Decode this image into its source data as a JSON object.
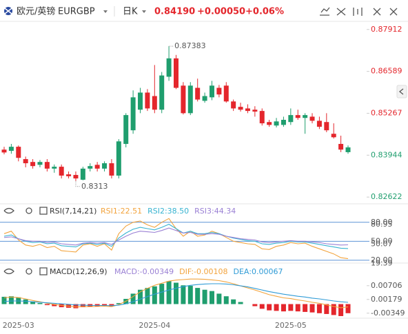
{
  "header": {
    "pair": "欧元/英镑",
    "symbol": "EURGBP",
    "period": "日K",
    "price": "0.84190",
    "change": "+0.00050",
    "change_pct": "+0.06%",
    "price_color": "#e4262c"
  },
  "chart_data": [
    {
      "type": "candlestick",
      "categories": [
        null,
        null,
        "2025-03",
        null,
        null,
        null,
        null,
        null,
        null,
        null,
        null,
        null,
        null,
        null,
        null,
        null,
        null,
        null,
        null,
        null,
        null,
        "2025-04",
        null,
        null,
        null,
        null,
        null,
        null,
        null,
        null,
        null,
        null,
        null,
        null,
        null,
        null,
        null,
        null,
        null,
        null,
        "2025-05",
        null,
        null,
        null,
        null,
        null,
        null,
        null,
        null
      ],
      "open": [
        0.8412,
        0.8408,
        0.8421,
        0.8382,
        0.8373,
        0.8364,
        0.8373,
        0.8352,
        0.8358,
        0.8334,
        0.8332,
        0.8317,
        0.8352,
        0.8364,
        0.8352,
        0.8369,
        0.833,
        0.843,
        0.8473,
        0.8538,
        0.8592,
        0.8581,
        0.8538,
        0.8642,
        0.87,
        0.8614,
        0.8527,
        0.8607,
        0.8566,
        0.8577,
        0.8607,
        0.8614,
        0.8564,
        0.8547,
        0.8542,
        0.8538,
        0.8534,
        0.8499,
        0.8488,
        0.849,
        0.8499,
        0.8521,
        0.8512,
        0.8516,
        0.8503,
        0.8499,
        0.8462,
        0.843,
        0.8404
      ],
      "high": [
        0.8421,
        0.843,
        0.8425,
        0.839,
        0.8382,
        0.8379,
        0.8382,
        0.8365,
        0.8365,
        0.8343,
        0.8343,
        0.8358,
        0.8369,
        0.8373,
        0.8375,
        0.8382,
        0.8445,
        0.8527,
        0.8599,
        0.8607,
        0.8603,
        0.8679,
        0.8657,
        0.87383,
        0.8711,
        0.8625,
        0.8625,
        0.8636,
        0.8592,
        0.8629,
        0.8616,
        0.8625,
        0.857,
        0.856,
        0.8555,
        0.8549,
        0.8542,
        0.8506,
        0.8512,
        0.8516,
        0.8542,
        0.8538,
        0.8527,
        0.8527,
        0.8516,
        0.8527,
        0.8495,
        0.8456,
        0.8425
      ],
      "low": [
        0.8397,
        0.8399,
        0.8375,
        0.8356,
        0.8352,
        0.8356,
        0.8343,
        0.8339,
        0.8321,
        0.8321,
        0.8313,
        0.83151,
        0.8343,
        0.8343,
        0.8343,
        0.8321,
        0.8321,
        0.8419,
        0.8462,
        0.8527,
        0.8534,
        0.8527,
        0.8527,
        0.8629,
        0.8603,
        0.8523,
        0.8521,
        0.8564,
        0.856,
        0.8568,
        0.8577,
        0.856,
        0.8534,
        0.8532,
        0.8527,
        0.8516,
        0.8488,
        0.8484,
        0.8482,
        0.8484,
        0.849,
        0.8506,
        0.8462,
        0.8495,
        0.8477,
        0.8467,
        0.8447,
        0.8404,
        0.8399
      ],
      "close": [
        0.8403,
        0.8421,
        0.8386,
        0.8369,
        0.836,
        0.8373,
        0.8352,
        0.8358,
        0.833,
        0.8328,
        0.8321,
        0.8352,
        0.836,
        0.8352,
        0.8369,
        0.833,
        0.8438,
        0.8521,
        0.8577,
        0.8592,
        0.8542,
        0.8538,
        0.8646,
        0.87,
        0.8607,
        0.8527,
        0.8614,
        0.857,
        0.8581,
        0.8614,
        0.8586,
        0.8564,
        0.8542,
        0.8538,
        0.8534,
        0.8532,
        0.8495,
        0.849,
        0.8501,
        0.8506,
        0.8521,
        0.8512,
        0.8521,
        0.8503,
        0.8484,
        0.8473,
        0.8451,
        0.8412,
        0.8419
      ],
      "up_color": "#1f9e6e",
      "down_color": "#e4262c",
      "ylim": [
        0.8243,
        0.8819
      ],
      "yticks": [
        0.87912,
        0.86589,
        0.85267,
        0.83944,
        0.82622
      ]
    },
    {
      "type": "line",
      "title": "RSI(7,14,21)",
      "series": [
        {
          "name": "RSI1:22.51",
          "color": "#f2a33c",
          "values": [
            62,
            66,
            52,
            44,
            42,
            45,
            40,
            42,
            35,
            34,
            33,
            44,
            46,
            42,
            46,
            36,
            62,
            74,
            80,
            82,
            76,
            72,
            80,
            86,
            70,
            58,
            66,
            58,
            60,
            66,
            62,
            56,
            50,
            48,
            46,
            45,
            38,
            37,
            42,
            44,
            48,
            46,
            47,
            42,
            38,
            34,
            30,
            24,
            22.51
          ]
        },
        {
          "name": "RSI2:38.50",
          "color": "#37b3d0",
          "values": [
            58,
            60,
            54,
            50,
            48,
            49,
            46,
            47,
            43,
            42,
            41,
            46,
            47,
            45,
            47,
            42,
            55,
            63,
            69,
            72,
            70,
            68,
            72,
            77,
            70,
            63,
            66,
            62,
            62,
            64,
            62,
            58,
            55,
            53,
            51,
            50,
            46,
            45,
            47,
            48,
            50,
            49,
            49,
            47,
            45,
            43,
            41,
            39,
            38.5
          ]
        },
        {
          "name": "RSI3:44.34",
          "color": "#9a80d4",
          "values": [
            56,
            57,
            54,
            51,
            50,
            50,
            48,
            49,
            46,
            45,
            44,
            47,
            48,
            47,
            48,
            45,
            52,
            58,
            63,
            66,
            65,
            64,
            67,
            71,
            67,
            63,
            64,
            61,
            61,
            62,
            61,
            58,
            56,
            54,
            53,
            52,
            49,
            48,
            49,
            50,
            51,
            50,
            50,
            49,
            48,
            46,
            45,
            44,
            44.34
          ]
        }
      ],
      "ylim": [
        15.5,
        88.5
      ],
      "yticks": [
        {
          "value": 80,
          "label": "80.00"
        },
        {
          "value": 50,
          "label": "50.00"
        },
        {
          "value": 20,
          "label": "20.00"
        }
      ],
      "marker_labels": [
        80.95,
        50.07,
        19.39
      ],
      "grid": true,
      "grid_color": "#5b93d6"
    },
    {
      "type": "macd",
      "title": "MACD(12,26,9)",
      "series": [
        {
          "name": "MACD:-0.00349",
          "kind": "bar",
          "color": "#9a80d4",
          "up_color": "#1f9e6e",
          "down_color": "#e4262c",
          "values": [
            0.0028,
            0.003,
            0.0026,
            0.0018,
            0.001,
            0.0004,
            -0.0004,
            -0.0008,
            -0.0012,
            -0.0014,
            -0.0016,
            -0.0012,
            -0.001,
            -0.0008,
            -0.0006,
            -0.0008,
            0.0004,
            0.002,
            0.004,
            0.0055,
            0.0062,
            0.0068,
            0.0078,
            0.0088,
            0.0082,
            0.0072,
            0.007,
            0.0062,
            0.0055,
            0.005,
            0.004,
            0.003,
            0.0018,
            0.0008,
            0.0,
            -0.0008,
            -0.0018,
            -0.0024,
            -0.0026,
            -0.0028,
            -0.0026,
            -0.0028,
            -0.003,
            -0.0032,
            -0.0035,
            -0.0038,
            -0.0042,
            -0.0046,
            -0.00349
          ]
        },
        {
          "name": "DIF:-0.00108",
          "kind": "line",
          "color": "#f2a33c",
          "values": [
            0.0024,
            0.0027,
            0.0025,
            0.002,
            0.0014,
            0.0009,
            0.0003,
            -0.0001,
            -0.0005,
            -0.0008,
            -0.0011,
            -0.001,
            -0.001,
            -0.0009,
            -0.0008,
            -0.001,
            -0.0002,
            0.0011,
            0.0029,
            0.0047,
            0.006,
            0.0072,
            0.008,
            0.0088,
            0.0092,
            0.0094,
            0.0096,
            0.0096,
            0.0095,
            0.0093,
            0.009,
            0.0085,
            0.0078,
            0.007,
            0.0062,
            0.0054,
            0.0045,
            0.0036,
            0.003,
            0.0024,
            0.0021,
            0.0016,
            0.0012,
            0.0007,
            0.0003,
            -0.0003,
            -0.0009,
            -0.0014,
            -0.00108
          ]
        },
        {
          "name": "DEA:0.00067",
          "kind": "line",
          "color": "#2f9bd6",
          "values": [
            0.001,
            0.0012,
            0.0012,
            0.0011,
            0.0009,
            0.0007,
            0.0005,
            0.0003,
            0.0001,
            -0.0001,
            -0.0003,
            -0.0004,
            -0.0005,
            -0.0005,
            -0.0005,
            -0.0006,
            -0.0004,
            0.0001,
            0.0009,
            0.0019,
            0.0029,
            0.0038,
            0.0046,
            0.0054,
            0.0061,
            0.0067,
            0.0072,
            0.0075,
            0.0077,
            0.0078,
            0.0078,
            0.0077,
            0.0074,
            0.007,
            0.0066,
            0.006,
            0.0054,
            0.0048,
            0.0043,
            0.0038,
            0.0034,
            0.003,
            0.0027,
            0.0023,
            0.002,
            0.0016,
            0.0012,
            0.0009,
            0.00067
          ]
        }
      ],
      "ylim": [
        -0.0054,
        0.0123
      ],
      "yticks": [
        0.00706,
        0.00179,
        -0.00349
      ]
    }
  ]
}
